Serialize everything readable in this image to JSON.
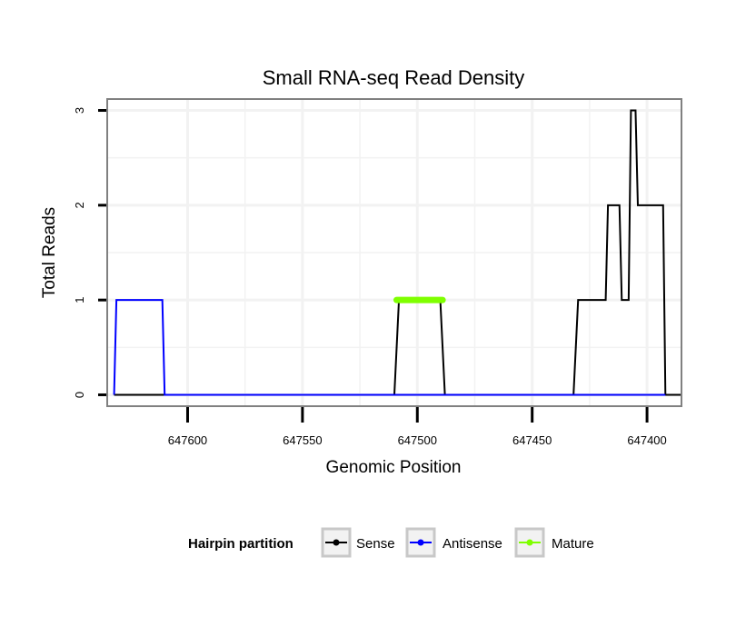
{
  "chart_data": {
    "type": "line",
    "title": "Small RNA-seq Read Density",
    "xlabel": "Genomic Position",
    "ylabel": "Total Reads",
    "x_reversed": true,
    "xlim": [
      647635,
      647385
    ],
    "ylim": [
      -0.12,
      3.12
    ],
    "x_ticks": [
      647600,
      647550,
      647500,
      647450,
      647400
    ],
    "x_tick_labels": [
      "647600",
      "647550",
      "647500",
      "647450",
      "647400"
    ],
    "y_ticks": [
      0,
      1,
      2,
      3
    ],
    "y_tick_labels": [
      "0",
      "1",
      "2",
      "3"
    ],
    "grid": true,
    "legend": {
      "title": "Hairpin partition",
      "position": "bottom",
      "entries": [
        "Sense",
        "Antisense",
        "Mature"
      ]
    },
    "series": [
      {
        "name": "Sense",
        "color": "#000000",
        "x": [
          647632,
          647510,
          647508,
          647490,
          647488,
          647432,
          647430,
          647418,
          647417,
          647412,
          647411,
          647408,
          647407,
          647405,
          647404,
          647393,
          647392,
          647388,
          647387,
          647385
        ],
        "values": [
          0,
          0,
          1,
          1,
          0,
          0,
          1,
          1,
          2,
          2,
          1,
          1,
          3,
          3,
          2,
          2,
          0,
          0,
          0,
          0
        ]
      },
      {
        "name": "Antisense",
        "color": "#0000ff",
        "x": [
          647632,
          647631,
          647611,
          647610,
          647508,
          647488,
          647432,
          647392
        ],
        "values": [
          0,
          1,
          1,
          0,
          0,
          0,
          0,
          0
        ]
      },
      {
        "name": "Mature",
        "color": "#7fff00",
        "x": [
          647509,
          647489
        ],
        "values": [
          1,
          1
        ]
      }
    ]
  }
}
